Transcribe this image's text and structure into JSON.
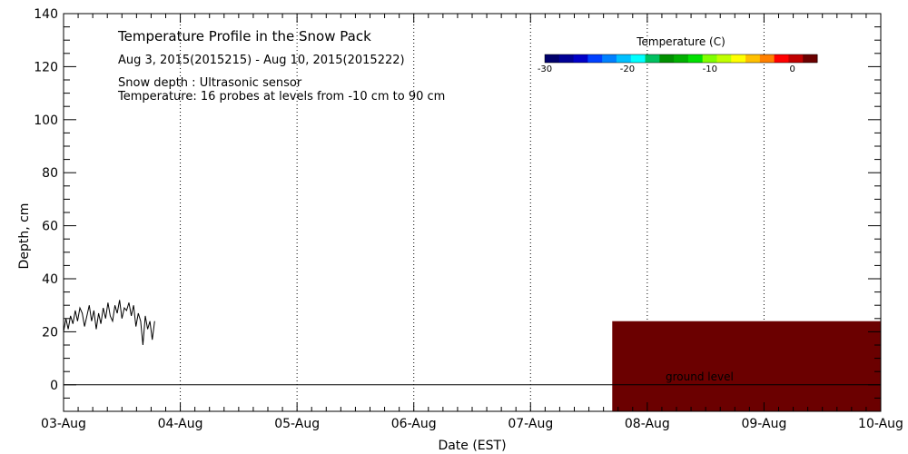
{
  "chart_data": {
    "type": "line",
    "title": "Temperature Profile in the Snow Pack",
    "subtitle": "Aug  3, 2015(2015215) - Aug 10, 2015(2015222)",
    "notes": [
      "Snow depth : Ultrasonic sensor",
      "Temperature: 16 probes at levels from -10 cm to 90 cm"
    ],
    "xlabel": "Date (EST)",
    "ylabel": "Depth, cm",
    "xlim": [
      0,
      7
    ],
    "ylim": [
      -10,
      140
    ],
    "x_tick_labels": [
      "03-Aug",
      "04-Aug",
      "05-Aug",
      "06-Aug",
      "07-Aug",
      "08-Aug",
      "09-Aug",
      "10-Aug"
    ],
    "y_ticks": [
      0,
      20,
      40,
      60,
      80,
      100,
      120,
      140
    ],
    "grid": true,
    "ground_level_label": "ground level",
    "ground_level_value": 0,
    "snow_depth_series": {
      "name": "Snow depth",
      "color": "#000000",
      "x": [
        0.0,
        0.02,
        0.04,
        0.06,
        0.08,
        0.1,
        0.12,
        0.14,
        0.16,
        0.18,
        0.2,
        0.22,
        0.24,
        0.26,
        0.28,
        0.3,
        0.32,
        0.34,
        0.36,
        0.38,
        0.4,
        0.42,
        0.44,
        0.46,
        0.48,
        0.5,
        0.52,
        0.54,
        0.56,
        0.58,
        0.6,
        0.62,
        0.64,
        0.66,
        0.68,
        0.7,
        0.72,
        0.74,
        0.76,
        0.78
      ],
      "y": [
        20,
        25,
        21,
        26,
        23,
        28,
        24,
        29,
        27,
        22,
        26,
        30,
        24,
        28,
        21,
        27,
        23,
        29,
        25,
        31,
        26,
        24,
        30,
        27,
        32,
        25,
        29,
        28,
        31,
        26,
        30,
        22,
        27,
        24,
        15,
        26,
        21,
        24,
        17,
        24
      ]
    },
    "temperature_block": {
      "x_start": 4.7,
      "x_end": 7.0,
      "y_bottom": -10,
      "y_top": 24,
      "temperature_c": 2,
      "color": "#6b0000"
    },
    "colorbar": {
      "title": "Temperature (C)",
      "range": [
        -30,
        3
      ],
      "tick_labels": [
        "-30",
        "-20",
        "-10",
        "0"
      ],
      "tick_values": [
        -30,
        -20,
        -10,
        0
      ],
      "colors": [
        "#00006b",
        "#000096",
        "#0000c8",
        "#0040ff",
        "#0080ff",
        "#00c0ff",
        "#00ffff",
        "#00c060",
        "#009000",
        "#00b000",
        "#00e000",
        "#80ff00",
        "#c0ff00",
        "#ffff00",
        "#ffc000",
        "#ff8000",
        "#ff0000",
        "#c00000",
        "#6b0000"
      ]
    }
  }
}
